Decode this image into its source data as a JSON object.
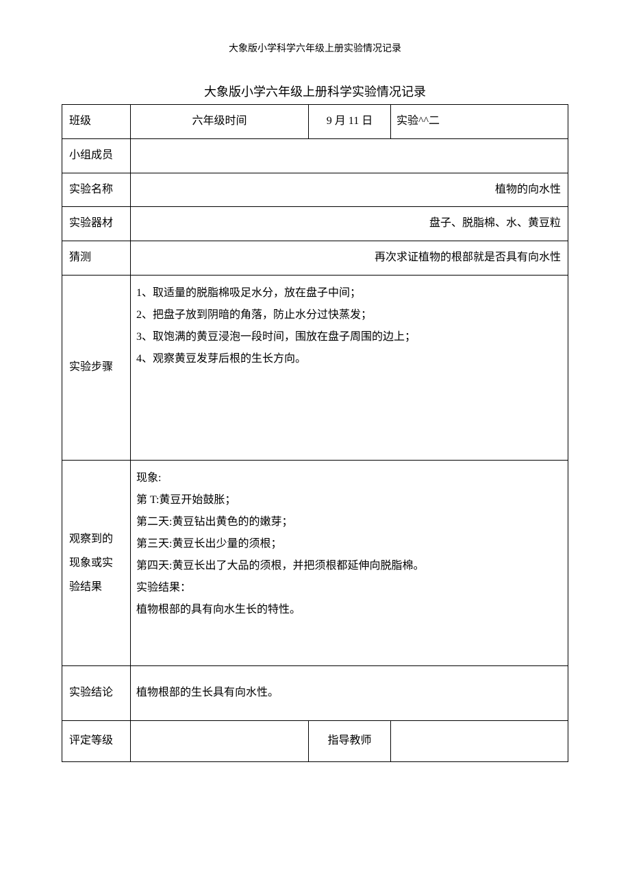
{
  "header": "大象版小学科学六年级上册实验情况记录",
  "title": "大象版小学六年级上册科学实验情况记录",
  "row1": {
    "label_class": "班级",
    "class_time": "六年级时间",
    "date": "9 月 11 日",
    "exp_label": "实验^^二"
  },
  "members": {
    "label": "小组成员",
    "value": ""
  },
  "exp_name": {
    "label": "实验名称",
    "value": "植物的向水性"
  },
  "equipment": {
    "label": "实验器材",
    "value": "盘子、脱脂棉、水、黄豆粒"
  },
  "guess": {
    "label": "猜测",
    "value": "再次求证植物的根部就是否具有向水性"
  },
  "steps": {
    "label": "实验步骤",
    "line1": "1、取适量的脱脂棉吸足水分，放在盘子中间；",
    "line2": "2、把盘子放到阴暗的角落，防止水分过快蒸发；",
    "line3": "3、取饱满的黄豆浸泡一段时间，围放在盘子周围的边上；",
    "line4": "4、观察黄豆发芽后根的生长方向。"
  },
  "observation": {
    "label_line1": "观察到的",
    "label_line2": "现象或实",
    "label_line3": "验结果",
    "phenomenon_title": "现象:",
    "day1": "第 T:黄豆开始鼓胀；",
    "day2": "第二天:黄豆钻出黄色的的嫩芽；",
    "day3": "第三天:黄豆长出少量的须根；",
    "day4": "第四天:黄豆长出了大品的须根，并把须根都延伸向脱脂棉。",
    "result_title": "实验结果：",
    "result_text": "植物根部的具有向水生长的特性。"
  },
  "conclusion": {
    "label": "实验结论",
    "value": "植物根部的生长具有向水性。"
  },
  "rating": {
    "label": "评定等级",
    "value": "",
    "teacher_label": "指导教师",
    "teacher_value": ""
  }
}
